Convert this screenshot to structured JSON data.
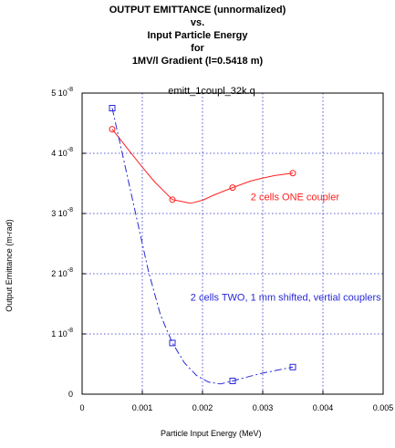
{
  "title_lines": [
    "OUTPUT  EMITTANCE (unnormalized)",
    "vs.",
    "Input Particle Energy",
    "for",
    "1MV/l Gradient  (l=0.5418 m)"
  ],
  "chart_data": {
    "type": "line",
    "plot_label": "emitt_1coupl_32k.q",
    "xlabel": "Particle Input Energy (MeV)",
    "ylabel": "Output Emittance  (m-rad)",
    "xlim": [
      0,
      0.005
    ],
    "ylim": [
      0,
      5e-08
    ],
    "x_ticks": [
      {
        "value": 0,
        "label": "0"
      },
      {
        "value": 0.001,
        "label": "0.001"
      },
      {
        "value": 0.002,
        "label": "0.002"
      },
      {
        "value": 0.003,
        "label": "0.003"
      },
      {
        "value": 0.004,
        "label": "0.004"
      },
      {
        "value": 0.005,
        "label": "0.005"
      }
    ],
    "y_ticks": [
      {
        "value": 0,
        "mantissa": "0",
        "exp": ""
      },
      {
        "value": 1e-08,
        "mantissa": "1 10",
        "exp": "-8"
      },
      {
        "value": 2e-08,
        "mantissa": "2 10",
        "exp": "-8"
      },
      {
        "value": 3e-08,
        "mantissa": "3 10",
        "exp": "-8"
      },
      {
        "value": 4e-08,
        "mantissa": "4 10",
        "exp": "-8"
      },
      {
        "value": 5e-08,
        "mantissa": "5 10",
        "exp": "-8"
      }
    ],
    "grid": true,
    "series": [
      {
        "name": "2 cells ONE coupler",
        "color": "#ff2020",
        "marker": "circle",
        "dash": "solid",
        "x": [
          0.0005,
          0.0015,
          0.0025,
          0.0035
        ],
        "y": [
          4.4e-08,
          3.23e-08,
          3.43e-08,
          3.67e-08
        ],
        "curve_x": [
          0.0005,
          0.0008,
          0.001,
          0.0012,
          0.0015,
          0.0018,
          0.002,
          0.0022,
          0.0025,
          0.0028,
          0.003,
          0.0032,
          0.0035
        ],
        "curve_y": [
          4.4e-08,
          4.02e-08,
          3.77e-08,
          3.53e-08,
          3.23e-08,
          3.17e-08,
          3.22e-08,
          3.31e-08,
          3.43e-08,
          3.54e-08,
          3.59e-08,
          3.63e-08,
          3.67e-08
        ],
        "label_at": [
          0.0028,
          3.22e-08
        ]
      },
      {
        "name": "2 cells TWO, 1 mm shifted, vertial couplers",
        "color": "#2828d8",
        "marker": "square",
        "dash": "dashdot",
        "x": [
          0.0005,
          0.0015,
          0.0025,
          0.0035
        ],
        "y": [
          4.75e-08,
          8.5e-09,
          2.2e-09,
          4.5e-09
        ],
        "curve_x": [
          0.0005,
          0.0007,
          0.0009,
          0.0011,
          0.0013,
          0.0015,
          0.0017,
          0.0019,
          0.0021,
          0.0023,
          0.0025,
          0.0028,
          0.003,
          0.0032,
          0.0035
        ],
        "curve_y": [
          4.75e-08,
          3.85e-08,
          2.95e-08,
          2.05e-08,
          1.32e-08,
          8.5e-09,
          5.2e-09,
          3.1e-09,
          2e-09,
          1.7e-09,
          2.2e-09,
          3e-09,
          3.5e-09,
          3.9e-09,
          4.5e-09
        ],
        "label_at": [
          0.0018,
          1.55e-08
        ]
      }
    ]
  }
}
